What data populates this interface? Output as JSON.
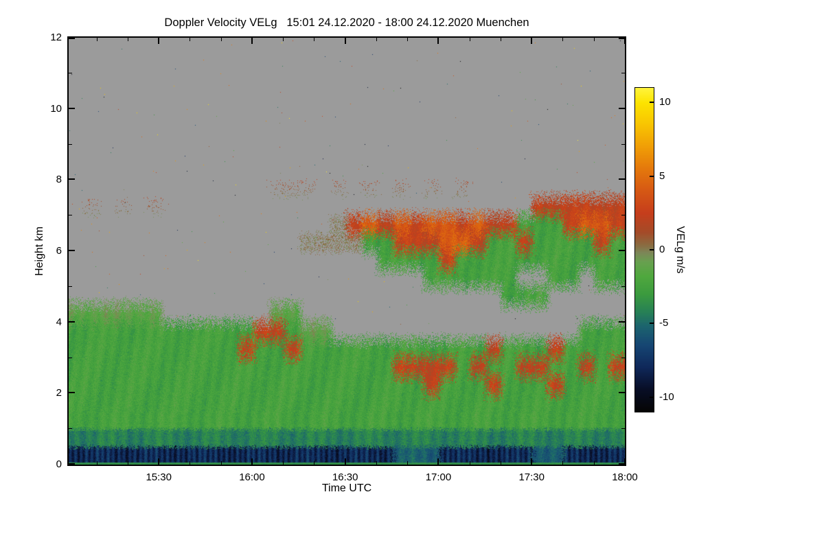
{
  "chart_data": {
    "type": "heatmap",
    "title": "Doppler Velocity VELg   15:01 24.12.2020 - 18:00 24.12.2020 Muenchen",
    "xlabel": "Time UTC",
    "ylabel": "Height km",
    "colorbar_label": "VELg m/s",
    "x_start": "15:01",
    "x_end": "18:00",
    "x_ticks": [
      "15:30",
      "16:00",
      "16:30",
      "17:00",
      "17:30",
      "18:00"
    ],
    "x_minor_ticks": [
      "15:10",
      "15:20",
      "15:40",
      "15:50",
      "16:10",
      "16:20",
      "16:40",
      "16:50",
      "17:10",
      "17:20",
      "17:40",
      "17:50"
    ],
    "y_range": [
      0,
      12
    ],
    "y_ticks": [
      0,
      2,
      4,
      6,
      8,
      10,
      12
    ],
    "y_minor_ticks": [
      1,
      3,
      5,
      7,
      9,
      11
    ],
    "value_range": [
      -11,
      11
    ],
    "colorbar_ticks": [
      10,
      5,
      0,
      -5,
      -10
    ],
    "no_data_color": "#9b9b9b",
    "legend_position": "right",
    "grid_lines": false,
    "colormap_stops": [
      [
        -11,
        5,
        5,
        5
      ],
      [
        -9.5,
        8,
        14,
        38
      ],
      [
        -8,
        15,
        40,
        90
      ],
      [
        -6.5,
        22,
        70,
        115
      ],
      [
        -5.2,
        28,
        100,
        110
      ],
      [
        -4.2,
        40,
        130,
        85
      ],
      [
        -3,
        60,
        155,
        62
      ],
      [
        -1.8,
        80,
        168,
        62
      ],
      [
        -0.8,
        105,
        160,
        80
      ],
      [
        -0.2,
        125,
        135,
        88
      ],
      [
        0.3,
        138,
        108,
        66
      ],
      [
        1.2,
        165,
        75,
        40
      ],
      [
        2.5,
        198,
        62,
        28
      ],
      [
        4,
        214,
        88,
        20
      ],
      [
        5.5,
        228,
        120,
        12
      ],
      [
        7,
        240,
        158,
        6
      ],
      [
        8.5,
        248,
        196,
        2
      ],
      [
        10,
        252,
        228,
        0
      ],
      [
        11,
        255,
        244,
        60
      ]
    ],
    "grid": {
      "description": "Doppler velocity field, 36 time columns (15:01 to 18:00, about 5 min each) by 24 height bins of 0.5 km; each column string reads top (12 km) to bottom (0 km); . = no echo (gray), values in m/s per charmap; s = sparse dark speck line, z = thin broken cloud line, b = near-surface strong downward band, G = dark green shear layer, t = teal surface segment",
      "charmap": {
        ".": null,
        "a": -1.2,
        "g": -2.4,
        "G": -4.2,
        "t": -5.5,
        "b": -8.0,
        "z": 0.2,
        "s": 0.8,
        "o": 2.3,
        "r": 4.2
      },
      "columns": [
        "...............aggggggGb",
        ".........s.....aggggggGb",
        "...............aggggggGb",
        ".........s.....aggggggGb",
        "...............aggggggGb",
        ".........s.....aggggggGb",
        "................ggggggGb",
        "................ggggggGb",
        "................ggggggGb",
        "................ggggggGb",
        "................ggggggGb",
        "................goggggGb",
        "................ogggggGb",
        "........s......aogggggGb",
        "........s......agoggggGb",
        "........s..z....agggggGb",
        "...........z....agggggGb",
        "........s.zz.....gggggGb",
        "..........oz.....gggggGb",
        "........s.rg.....gggggGb",
        "..........ogg....gggggGb",
        "........s.rog....gogggGt",
        "..........oog....gogggGt",
        "........s.rogg...googgGt",
        "..........rrog...gogggGb",
        "........s.orgg...gggggGb",
        "..........rogg...gogggGb",
        "..........oggg...ogoggGb",
        "..........ogggg..gggggGb",
        "..........gog.g..gogggGb",
        ".........oggg.g..gogggGt",
        ".........ogggg...ogoggGt",
        ".........ooggg...gggggGb",
        ".........orgg...ggogggGb",
        ".........orogg..ggggggGb",
        ".........ooggg..ggogggGb"
      ]
    },
    "noise_speckle": {
      "density": 0.0007,
      "seed": 42
    }
  }
}
